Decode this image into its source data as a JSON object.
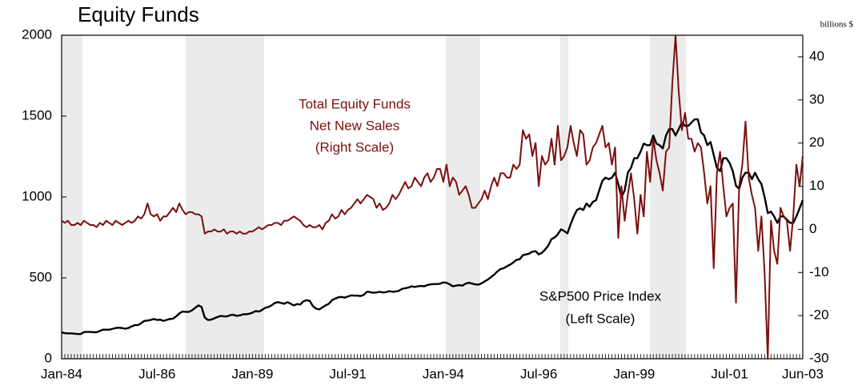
{
  "chart_data": {
    "type": "line",
    "title": "Equity Funds",
    "y2_unit_label": "billions $",
    "annotations": [
      {
        "lines": [
          "Total Equity Funds",
          "Net New Sales",
          "(Right Scale)"
        ],
        "series": 1
      },
      {
        "lines": [
          "S&P500 Price Index",
          "(Left Scale)"
        ],
        "series": 0
      }
    ],
    "categories": [
      "Jan-84",
      null,
      null,
      null,
      null,
      null,
      null,
      null,
      null,
      null,
      null,
      null,
      null,
      null,
      null,
      null,
      null,
      null,
      null,
      null,
      null,
      null,
      null,
      null,
      null,
      null,
      null,
      null,
      null,
      null,
      "Jul-86",
      null,
      null,
      null,
      null,
      null,
      null,
      null,
      null,
      null,
      null,
      null,
      null,
      null,
      null,
      null,
      null,
      null,
      null,
      null,
      null,
      null,
      null,
      null,
      null,
      null,
      null,
      null,
      null,
      null,
      "Jan-89",
      null,
      null,
      null,
      null,
      null,
      null,
      null,
      null,
      null,
      null,
      null,
      null,
      null,
      null,
      null,
      null,
      null,
      null,
      null,
      null,
      null,
      null,
      null,
      null,
      null,
      null,
      null,
      null,
      null,
      "Jul-91",
      null,
      null,
      null,
      null,
      null,
      null,
      null,
      null,
      null,
      null,
      null,
      null,
      null,
      null,
      null,
      null,
      null,
      null,
      null,
      null,
      null,
      null,
      null,
      null,
      null,
      null,
      null,
      null,
      null,
      "Jan-94",
      null,
      null,
      null,
      null,
      null,
      null,
      null,
      null,
      null,
      null,
      null,
      null,
      null,
      null,
      null,
      null,
      null,
      null,
      null,
      null,
      null,
      null,
      null,
      null,
      null,
      null,
      null,
      null,
      null,
      "Jul-96",
      null,
      null,
      null,
      null,
      null,
      null,
      null,
      null,
      null,
      null,
      null,
      null,
      null,
      null,
      null,
      null,
      null,
      null,
      null,
      null,
      null,
      null,
      null,
      null,
      null,
      null,
      null,
      null,
      null,
      "Jan-99",
      null,
      null,
      null,
      null,
      null,
      null,
      null,
      null,
      null,
      null,
      null,
      null,
      null,
      null,
      null,
      null,
      null,
      null,
      null,
      null,
      null,
      null,
      null,
      null,
      null,
      null,
      null,
      null,
      null,
      "Jul-01",
      null,
      null,
      null,
      null,
      null,
      null,
      null,
      null,
      null,
      null,
      null,
      null,
      null,
      null,
      null,
      null,
      null,
      null,
      null,
      null,
      null,
      null,
      "Jun-03"
    ],
    "series": [
      {
        "name": "S&P500 Price Index",
        "color": "#000000",
        "axis": "y",
        "values": [
          163,
          158,
          157,
          157,
          155,
          153,
          153,
          165,
          166,
          166,
          164,
          164,
          172,
          180,
          180,
          180,
          185,
          190,
          192,
          190,
          186,
          190,
          200,
          208,
          208,
          220,
          234,
          236,
          240,
          246,
          240,
          242,
          234,
          240,
          246,
          248,
          262,
          280,
          292,
          290,
          290,
          300,
          315,
          330,
          320,
          255,
          240,
          242,
          250,
          258,
          265,
          262,
          262,
          270,
          272,
          265,
          268,
          275,
          275,
          278,
          285,
          295,
          292,
          302,
          315,
          320,
          330,
          345,
          350,
          345,
          340,
          350,
          340,
          330,
          338,
          335,
          355,
          362,
          358,
          325,
          310,
          305,
          318,
          330,
          340,
          362,
          372,
          380,
          382,
          378,
          385,
          392,
          390,
          390,
          388,
          395,
          415,
          412,
          408,
          410,
          414,
          410,
          412,
          418,
          414,
          416,
          420,
          432,
          436,
          440,
          448,
          444,
          448,
          450,
          448,
          456,
          460,
          462,
          462,
          464,
          472,
          470,
          460,
          448,
          452,
          455,
          452,
          464,
          470,
          465,
          460,
          458,
          466,
          478,
          490,
          505,
          520,
          540,
          555,
          560,
          572,
          582,
          595,
          612,
          615,
          640,
          645,
          650,
          662,
          665,
          645,
          655,
          675,
          700,
          740,
          750,
          770,
          800,
          790,
          775,
          830,
          880,
          920,
          930,
          920,
          960,
          940,
          970,
          980,
          1040,
          1100,
          1120,
          1110,
          1120,
          1150,
          1080,
          1000,
          1040,
          1150,
          1180,
          1240,
          1240,
          1280,
          1330,
          1320,
          1320,
          1380,
          1330,
          1320,
          1300,
          1380,
          1420,
          1420,
          1380,
          1420,
          1460,
          1440,
          1440,
          1460,
          1480,
          1480,
          1400,
          1380,
          1320,
          1340,
          1260,
          1180,
          1160,
          1240,
          1240,
          1210,
          1160,
          1070,
          1050,
          1120,
          1150,
          1150,
          1110,
          1150,
          1110,
          1080,
          1000,
          900,
          910,
          880,
          840,
          880,
          880,
          860,
          840,
          840,
          880,
          930,
          980
        ]
      },
      {
        "name": "Total Equity Funds Net New Sales",
        "color": "#7a0f0f",
        "axis": "y2",
        "values": [
          2,
          1.5,
          2,
          1,
          1,
          1.5,
          1,
          2,
          1.5,
          1,
          1,
          0.5,
          1.5,
          1,
          2,
          1.5,
          1,
          2,
          1.5,
          1,
          1.5,
          2,
          1.5,
          2,
          3,
          2.5,
          3.5,
          6,
          3.5,
          3,
          3.5,
          2,
          3,
          3,
          4,
          5,
          4,
          6,
          4.5,
          3.5,
          4,
          4,
          3.5,
          3.5,
          3,
          -1,
          -0.5,
          -0.5,
          0,
          -0.5,
          -0.5,
          0,
          -1,
          -0.5,
          -0.5,
          -1,
          -0.5,
          -1,
          -1,
          -0.5,
          -0.5,
          0,
          0.5,
          0,
          0.5,
          1,
          1,
          1.5,
          1.5,
          1,
          2,
          2,
          2.5,
          3,
          2.5,
          2,
          1,
          0.5,
          1,
          0.5,
          0.5,
          1,
          0,
          1.5,
          2,
          3.5,
          2.5,
          3,
          4.5,
          3.5,
          4.5,
          5,
          6,
          7,
          6,
          7,
          8,
          7.5,
          7,
          5,
          6,
          4.5,
          5,
          6,
          8,
          7,
          8,
          9.5,
          11,
          9.5,
          10,
          12,
          11,
          10,
          12,
          13,
          11,
          12,
          14,
          14,
          11,
          15,
          10,
          12,
          11,
          8,
          9,
          10,
          8,
          5,
          5,
          6,
          7,
          9,
          7,
          10,
          12,
          10,
          13,
          13,
          12,
          12,
          15,
          14,
          15,
          23,
          21,
          22,
          17,
          20,
          10,
          17,
          15,
          16,
          21,
          15,
          24,
          16,
          17,
          19,
          24,
          20,
          17,
          23,
          22,
          15,
          16,
          19,
          20,
          22,
          24,
          19,
          20,
          15,
          19,
          -2,
          10,
          2,
          8,
          13,
          7,
          -1,
          8,
          3,
          18,
          11,
          21,
          16,
          13,
          9,
          18,
          19,
          34,
          45,
          32,
          23,
          27,
          21,
          21,
          18,
          20,
          19,
          13,
          6,
          10,
          -9,
          13,
          18,
          10,
          3,
          5,
          6,
          -17,
          10,
          15,
          25,
          12,
          8,
          5,
          -5,
          3,
          -10,
          -30,
          2,
          -5,
          -8,
          5,
          3,
          2,
          -5,
          3,
          15,
          10,
          17
        ]
      }
    ],
    "ylim": [
      0,
      2000
    ],
    "yticks": [
      0,
      500,
      1000,
      1500,
      2000
    ],
    "y2lim": [
      -30,
      45
    ],
    "y2ticks": [
      -30,
      -20,
      -10,
      0,
      10,
      20,
      30,
      40
    ],
    "grid": false
  }
}
